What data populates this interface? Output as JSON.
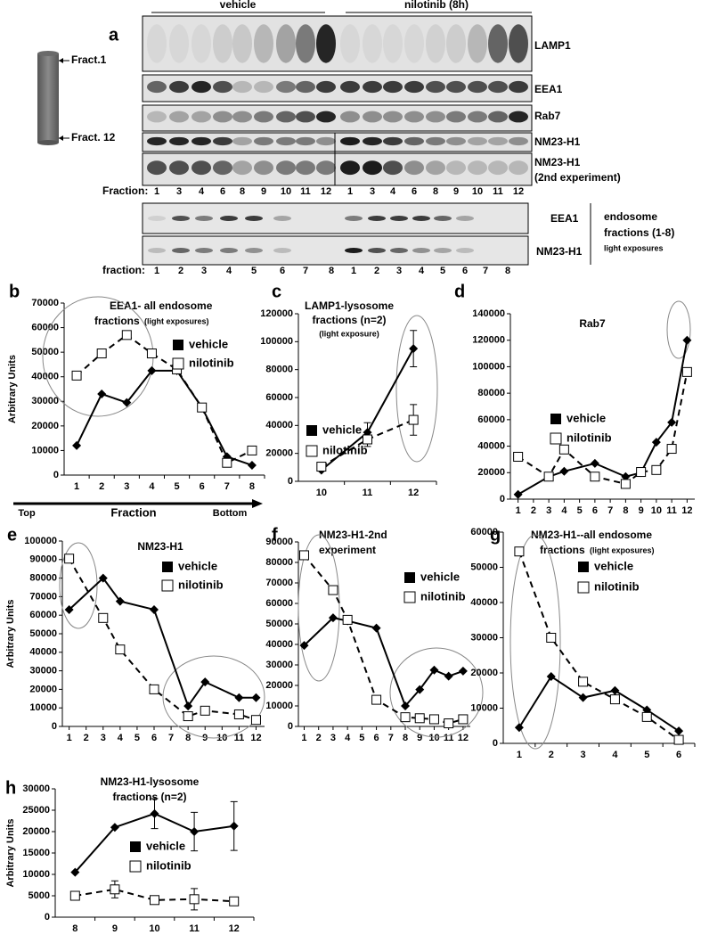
{
  "figure_a": {
    "label": "a",
    "groups": [
      "vehicle",
      "nilotinib (8h)"
    ],
    "tube_labels": [
      "Fract.1",
      "Fract. 12"
    ],
    "rows": [
      "LAMP1",
      "EEA1",
      "Rab7",
      "NM23-H1",
      "NM23-H1"
    ],
    "row_note": "(2nd experiment)",
    "fraction_label": "Fraction:",
    "lanes": [
      1,
      3,
      4,
      6,
      8,
      9,
      10,
      11,
      12
    ],
    "rows2": [
      "EEA1",
      "NM23-H1"
    ],
    "note2": [
      "endosome",
      "fractions (1-8)",
      "light exposures"
    ],
    "fraction_label2": "fraction:",
    "lanes2": [
      1,
      2,
      3,
      4,
      5,
      6,
      7,
      8
    ]
  },
  "chart_data": [
    {
      "type": "line",
      "panel": "b",
      "title": [
        "EEA1- all endosome",
        "fractions"
      ],
      "subtitle": "(light exposures)",
      "ylabel": "Arbitrary Units",
      "categories": [
        "1",
        "2",
        "3",
        "4",
        "5",
        "6",
        "7",
        "8"
      ],
      "x_annotations": [
        "Top",
        "Fraction",
        "Bottom"
      ],
      "series": [
        {
          "name": "vehicle",
          "color": "#000000",
          "marker": "diamond",
          "line_style": "solid",
          "values": [
            12000,
            33000,
            29500,
            42500,
            42500,
            27500,
            7500,
            4000
          ]
        },
        {
          "name": "nilotinib",
          "color": "#000000",
          "marker": "square",
          "line_style": "dashed",
          "values": [
            40500,
            49500,
            57000,
            49500,
            43000,
            27500,
            5000,
            10000
          ]
        }
      ],
      "ylim": [
        0,
        70000
      ],
      "yticks": [
        0,
        10000,
        20000,
        30000,
        40000,
        50000,
        60000,
        70000
      ]
    },
    {
      "type": "line",
      "panel": "c",
      "title": [
        "LAMP1-lysosome",
        "fractions (n=2)"
      ],
      "subtitle": "(light exposure)",
      "categories": [
        "10",
        "11",
        "12"
      ],
      "series": [
        {
          "name": "vehicle",
          "color": "#000000",
          "marker": "diamond",
          "line_style": "solid",
          "values": [
            8000,
            35000,
            95000
          ],
          "errors": [
            null,
            7000,
            13000
          ]
        },
        {
          "name": "nilotinib",
          "color": "#000000",
          "marker": "square",
          "line_style": "dashed",
          "values": [
            10500,
            30000,
            44000
          ],
          "errors": [
            null,
            5000,
            11000
          ]
        }
      ],
      "ylim": [
        0,
        120000
      ],
      "yticks": [
        0,
        20000,
        40000,
        60000,
        80000,
        100000,
        120000
      ]
    },
    {
      "type": "line",
      "panel": "d",
      "title": [
        "Rab7"
      ],
      "x": [
        1,
        3,
        4,
        6,
        8,
        9,
        10,
        11,
        12
      ],
      "xlim": [
        0.5,
        12.5
      ],
      "xticks": [
        1,
        2,
        3,
        4,
        5,
        6,
        7,
        8,
        9,
        10,
        11,
        12
      ],
      "series": [
        {
          "name": "vehicle",
          "color": "#000000",
          "marker": "diamond",
          "line_style": "solid",
          "values": [
            3500,
            17000,
            21000,
            27000,
            17000,
            20000,
            43000,
            58000,
            120000
          ]
        },
        {
          "name": "nilotinib",
          "color": "#000000",
          "marker": "square",
          "line_style": "dashed",
          "values": [
            32000,
            17000,
            37500,
            17000,
            11500,
            20500,
            22000,
            38000,
            96000
          ]
        }
      ],
      "ylim": [
        0,
        140000
      ],
      "yticks": [
        0,
        20000,
        40000,
        60000,
        80000,
        100000,
        120000,
        140000
      ]
    },
    {
      "type": "line",
      "panel": "e",
      "title": [
        "NM23-H1"
      ],
      "ylabel": "Arbitrary Units",
      "x": [
        1,
        3,
        4,
        6,
        8,
        9,
        11,
        12
      ],
      "xlim": [
        0.6,
        12.5
      ],
      "xticks": [
        1,
        2,
        3,
        4,
        5,
        6,
        7,
        8,
        9,
        10,
        11,
        12
      ],
      "series": [
        {
          "name": "vehicle",
          "color": "#000000",
          "marker": "diamond",
          "line_style": "solid",
          "values": [
            63000,
            80000,
            67500,
            63000,
            11000,
            24000,
            15500,
            15500
          ]
        },
        {
          "name": "nilotinib",
          "color": "#000000",
          "marker": "square",
          "line_style": "dashed",
          "values": [
            90500,
            58500,
            41500,
            20000,
            5500,
            8500,
            6500,
            3500
          ]
        }
      ],
      "ylim": [
        0,
        100000
      ],
      "yticks": [
        0,
        10000,
        20000,
        30000,
        40000,
        50000,
        60000,
        70000,
        80000,
        90000,
        100000
      ]
    },
    {
      "type": "line",
      "panel": "f",
      "title": [
        "NM23-H1-2nd",
        "experiment"
      ],
      "x": [
        1,
        3,
        4,
        6,
        8,
        9,
        10,
        11,
        12
      ],
      "xlim": [
        0.6,
        12.5
      ],
      "xticks": [
        1,
        2,
        3,
        4,
        5,
        6,
        7,
        8,
        9,
        10,
        11,
        12
      ],
      "series": [
        {
          "name": "vehicle",
          "color": "#000000",
          "marker": "diamond",
          "line_style": "solid",
          "values": [
            39500,
            53000,
            51500,
            48000,
            10000,
            18000,
            27500,
            24500,
            27000
          ]
        },
        {
          "name": "nilotinib",
          "color": "#000000",
          "marker": "square",
          "line_style": "dashed",
          "values": [
            83500,
            66500,
            52000,
            13000,
            4500,
            4000,
            3500,
            1500,
            3500
          ]
        }
      ],
      "ylim": [
        0,
        90000
      ],
      "yticks": [
        0,
        10000,
        20000,
        30000,
        40000,
        50000,
        60000,
        70000,
        80000,
        90000
      ]
    },
    {
      "type": "line",
      "panel": "g",
      "title": [
        "NM23-H1--all endosome",
        "fractions"
      ],
      "subtitle": "(light exposures)",
      "categories": [
        "1",
        "2",
        "3",
        "4",
        "5",
        "6"
      ],
      "series": [
        {
          "name": "vehicle",
          "color": "#000000",
          "marker": "diamond",
          "line_style": "solid",
          "values": [
            4500,
            19000,
            13000,
            15000,
            9500,
            3500
          ]
        },
        {
          "name": "nilotinib",
          "color": "#000000",
          "marker": "square",
          "line_style": "dashed",
          "values": [
            54500,
            30000,
            17500,
            12500,
            7500,
            1000
          ]
        }
      ],
      "ylim": [
        0,
        60000
      ],
      "yticks": [
        0,
        10000,
        20000,
        30000,
        40000,
        50000,
        60000
      ]
    },
    {
      "type": "line",
      "panel": "h",
      "title": [
        "NM23-H1-lysosome",
        "fractions (n=2)"
      ],
      "ylabel": "Arbitrary Units",
      "categories": [
        "8",
        "9",
        "10",
        "11",
        "12"
      ],
      "series": [
        {
          "name": "vehicle",
          "color": "#000000",
          "marker": "diamond",
          "line_style": "solid",
          "values": [
            10500,
            21000,
            24200,
            20000,
            21300
          ],
          "errors": [
            null,
            null,
            3500,
            4500,
            5700
          ]
        },
        {
          "name": "nilotinib",
          "color": "#000000",
          "marker": "square",
          "line_style": "dashed",
          "values": [
            5000,
            6500,
            4000,
            4200,
            3700
          ],
          "errors": [
            null,
            2000,
            null,
            2500,
            null
          ]
        }
      ],
      "ylim": [
        0,
        30000
      ],
      "yticks": [
        0,
        5000,
        10000,
        15000,
        20000,
        25000,
        30000
      ]
    }
  ]
}
